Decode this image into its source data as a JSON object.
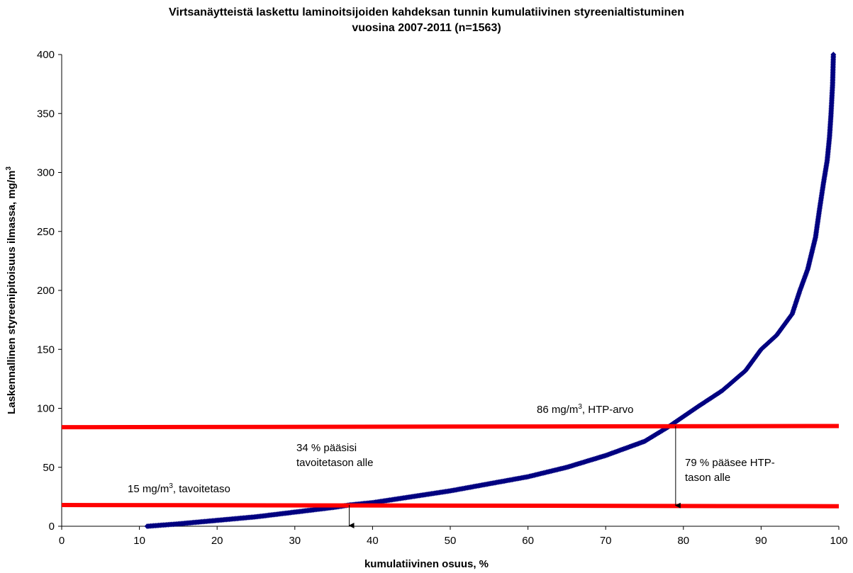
{
  "chart_data": {
    "type": "scatter",
    "title_line1": "Virtsanäytteistä laskettu laminoitsijoiden  kahdeksan tunnin kumulatiivinen styreenialtistuminen",
    "title_line2": "vuosina 2007-2011 (n=1563)",
    "xlabel": "kumulatiivinen osuus, %",
    "ylabel": "Laskennallinen styreenipitoisuus ilmassa, mg/m",
    "ylabel_sup": "3",
    "xlim": [
      0,
      100
    ],
    "ylim": [
      0,
      400
    ],
    "x_ticks": [
      "0",
      "10",
      "20",
      "30",
      "40",
      "50",
      "60",
      "70",
      "80",
      "90",
      "100"
    ],
    "y_ticks": [
      "0",
      "50",
      "100",
      "150",
      "200",
      "250",
      "300",
      "350",
      "400"
    ],
    "grid": false,
    "marker_color": "#000080",
    "reference_line_color": "#ff0000",
    "series": [
      {
        "points": [
          [
            11,
            0
          ],
          [
            15,
            2
          ],
          [
            20,
            5
          ],
          [
            25,
            8
          ],
          [
            30,
            12
          ],
          [
            35,
            16
          ],
          [
            37,
            18
          ],
          [
            40,
            20
          ],
          [
            45,
            25
          ],
          [
            50,
            30
          ],
          [
            55,
            36
          ],
          [
            60,
            42
          ],
          [
            65,
            50
          ],
          [
            70,
            60
          ],
          [
            75,
            72
          ],
          [
            78,
            84
          ],
          [
            80,
            93
          ],
          [
            82,
            102
          ],
          [
            85,
            115
          ],
          [
            88,
            132
          ],
          [
            90,
            150
          ],
          [
            92,
            162
          ],
          [
            94,
            180
          ],
          [
            95,
            200
          ],
          [
            96,
            218
          ],
          [
            97,
            245
          ],
          [
            97.5,
            268
          ],
          [
            98,
            290
          ],
          [
            98.5,
            310
          ],
          [
            98.8,
            330
          ],
          [
            99,
            350
          ],
          [
            99.2,
            375
          ],
          [
            99.3,
            400
          ]
        ]
      }
    ],
    "reference_lines": [
      {
        "y_start": 84,
        "y_end": 85
      },
      {
        "y_start": 18,
        "y_end": 17
      }
    ],
    "arrows": [
      {
        "x": 37,
        "y_from": 18,
        "y_to": 0
      },
      {
        "x": 79,
        "y_from": 85,
        "y_to": 17
      }
    ],
    "annotations": {
      "htp_prefix": "86 mg/m",
      "htp_sup": "3",
      "htp_suffix": ", HTP-arvo",
      "target_prefix": "15 mg/m",
      "target_sup": "3",
      "target_suffix": ", tavoitetaso",
      "below_target_line1": "34 % pääsisi",
      "below_target_line2": "tavoitetason alle",
      "below_htp_line1": "79 % pääsee HTP-",
      "below_htp_line2": "tason alle"
    }
  }
}
